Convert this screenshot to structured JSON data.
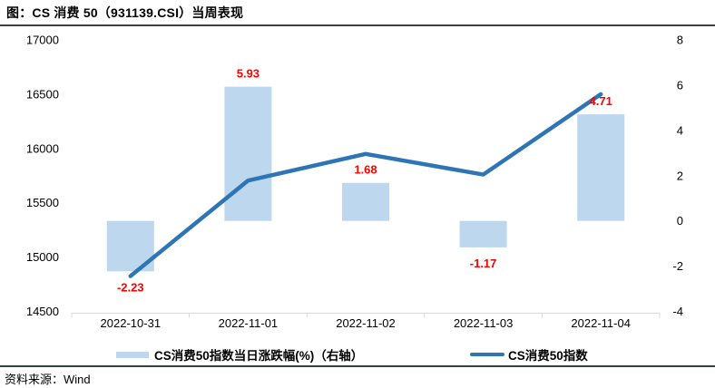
{
  "header": {
    "title": "图：CS 消费 50（931139.CSI）当周表现"
  },
  "footer": {
    "source_label": "资料来源：Wind"
  },
  "colors": {
    "bar_fill": "#BDD7EE",
    "line_stroke": "#2E75B6",
    "data_label": "#FF0000",
    "axis_line": "#D9D9D9",
    "divider": "#333F50"
  },
  "chart_data": {
    "type": "combo-bar-line",
    "title": "图：CS 消费 50（931139.CSI）当周表现",
    "categories": [
      "2022-10-31",
      "2022-11-01",
      "2022-11-02",
      "2022-11-03",
      "2022-11-04"
    ],
    "series": [
      {
        "name": "CS消费50指数当日涨跌幅(%)（右轴）",
        "type": "bar",
        "axis": "right",
        "values": [
          -2.23,
          5.93,
          1.68,
          -1.17,
          4.71
        ],
        "labels": [
          "-2.23",
          "5.93",
          "1.68",
          "-1.17",
          "4.71"
        ],
        "color": "#BDD7EE",
        "label_color": "#FF0000"
      },
      {
        "name": "CS消费50指数",
        "type": "line",
        "axis": "left",
        "values": [
          14825,
          15705,
          15950,
          15760,
          16500
        ],
        "color": "#2E75B6"
      }
    ],
    "left_axis": {
      "min": 14500,
      "max": 17000,
      "ticks": [
        "17000",
        "16500",
        "16000",
        "15500",
        "15000",
        "14500"
      ]
    },
    "right_axis": {
      "min": -4,
      "max": 8,
      "ticks": [
        "8",
        "6",
        "4",
        "2",
        "0",
        "-2",
        "-4"
      ]
    },
    "grid": false,
    "legend_position": "bottom"
  }
}
